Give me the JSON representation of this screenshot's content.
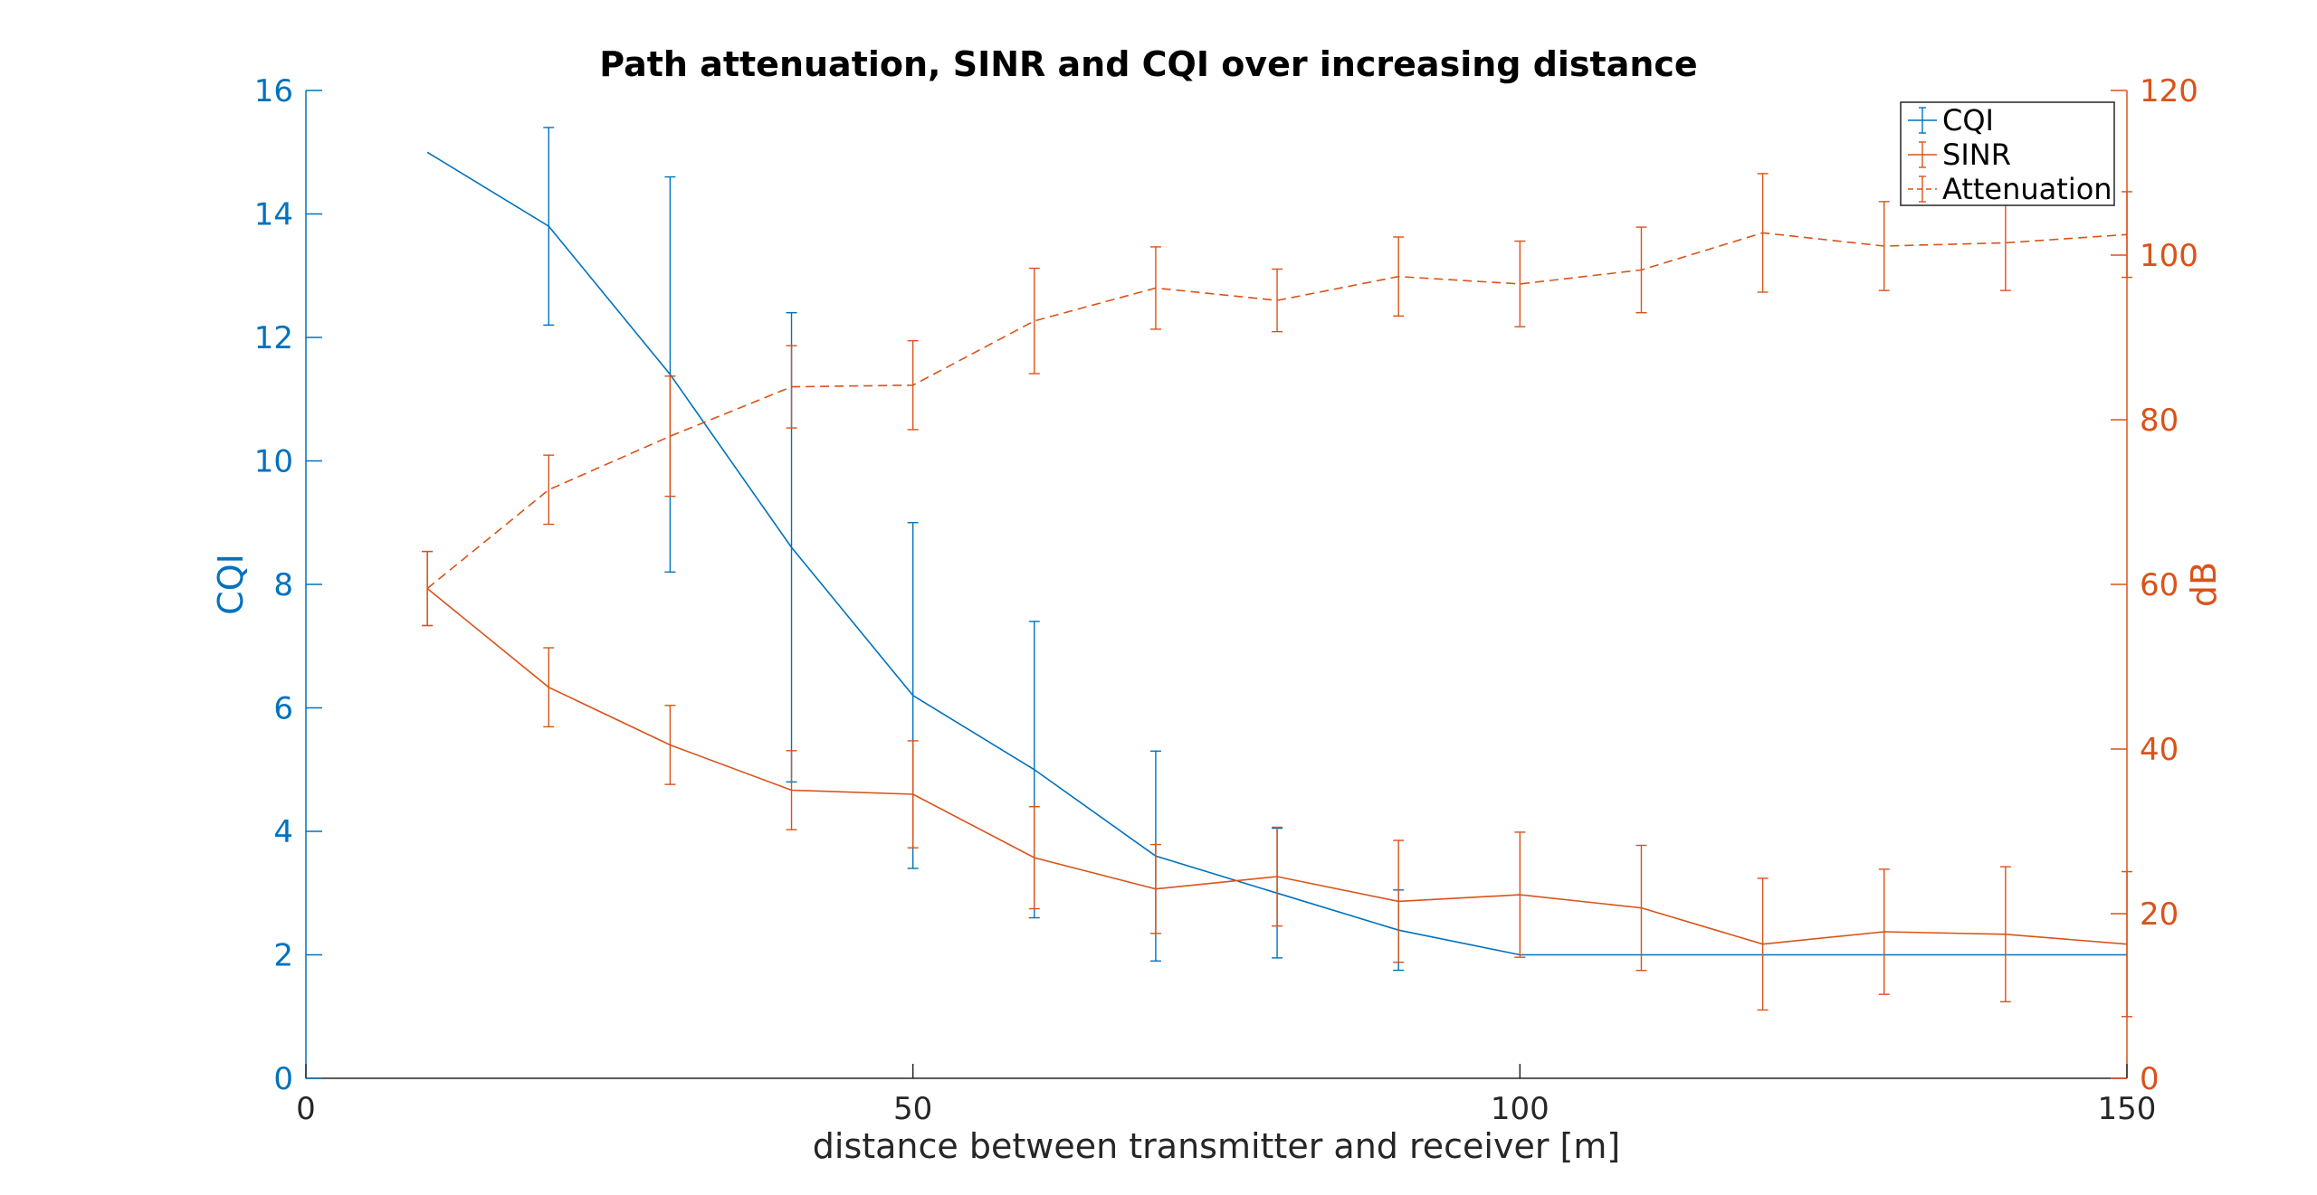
{
  "chart_data": {
    "type": "line",
    "title": "Path attenuation, SINR and CQI over increasing distance",
    "xlabel": "distance between transmitter and receiver [m]",
    "ylabel_left": "CQI",
    "ylabel_right": "dB",
    "xlim": [
      0,
      150
    ],
    "ylim_left": [
      0,
      16
    ],
    "ylim_right": [
      0,
      120
    ],
    "xticks": [
      0,
      50,
      100,
      150
    ],
    "yticks_left": [
      0,
      2,
      4,
      6,
      8,
      10,
      12,
      14,
      16
    ],
    "yticks_right": [
      0,
      20,
      40,
      60,
      80,
      100,
      120
    ],
    "grid": false,
    "legend_position": "top-right",
    "x": [
      10,
      20,
      30,
      40,
      50,
      60,
      70,
      80,
      90,
      100,
      110,
      120,
      130,
      140,
      150
    ],
    "series": [
      {
        "name": "CQI",
        "axis": "left",
        "style": "solid",
        "color": "#0072BD",
        "values": [
          15.0,
          13.8,
          11.4,
          8.6,
          6.2,
          5.0,
          3.6,
          3.0,
          2.4,
          2.0,
          2.0,
          2.0,
          2.0,
          2.0,
          2.0
        ],
        "errors": [
          0.0,
          1.6,
          3.2,
          3.8,
          2.8,
          2.4,
          1.7,
          1.05,
          0.65,
          0.0,
          0.0,
          0.0,
          0.0,
          0.0,
          0.0
        ]
      },
      {
        "name": "SINR",
        "axis": "right",
        "style": "solid",
        "color": "#D95319",
        "values": [
          59.5,
          47.5,
          40.5,
          35.0,
          34.5,
          26.8,
          23.0,
          24.5,
          21.5,
          22.3,
          20.7,
          16.3,
          17.8,
          17.5,
          16.3
        ],
        "errors": [
          4.5,
          4.8,
          4.8,
          4.8,
          6.5,
          6.2,
          5.4,
          6.0,
          7.4,
          7.6,
          7.6,
          8.0,
          7.6,
          8.2,
          8.8
        ]
      },
      {
        "name": "Attenuation",
        "axis": "right",
        "style": "dashed",
        "color": "#D95319",
        "values": [
          59.5,
          71.5,
          78.0,
          84.0,
          84.2,
          92.0,
          96.0,
          94.5,
          97.4,
          96.5,
          98.2,
          102.7,
          101.1,
          101.5,
          102.5
        ],
        "errors": [
          4.5,
          4.2,
          7.3,
          5.0,
          5.4,
          6.4,
          5.0,
          3.8,
          4.8,
          5.2,
          5.2,
          7.2,
          5.4,
          5.8,
          5.2
        ]
      }
    ]
  }
}
